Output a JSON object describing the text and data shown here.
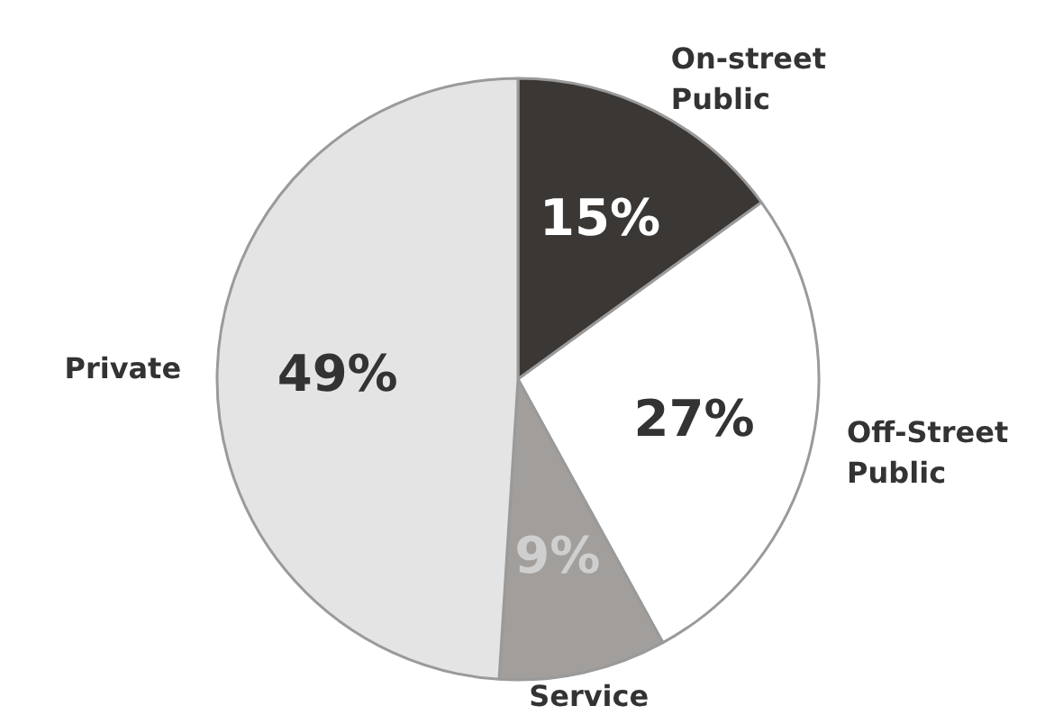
{
  "chart_data": {
    "type": "pie",
    "categories": [
      "On-street\nPublic",
      "Off-Street\nPublic",
      "Service",
      "Private"
    ],
    "values": [
      15,
      27,
      9,
      49
    ],
    "colors": [
      "#3b3734",
      "#ffffff",
      "#a19e9b",
      "#e4e4e4"
    ],
    "value_labels": [
      "15%",
      "27%",
      "9%",
      "49%"
    ]
  }
}
